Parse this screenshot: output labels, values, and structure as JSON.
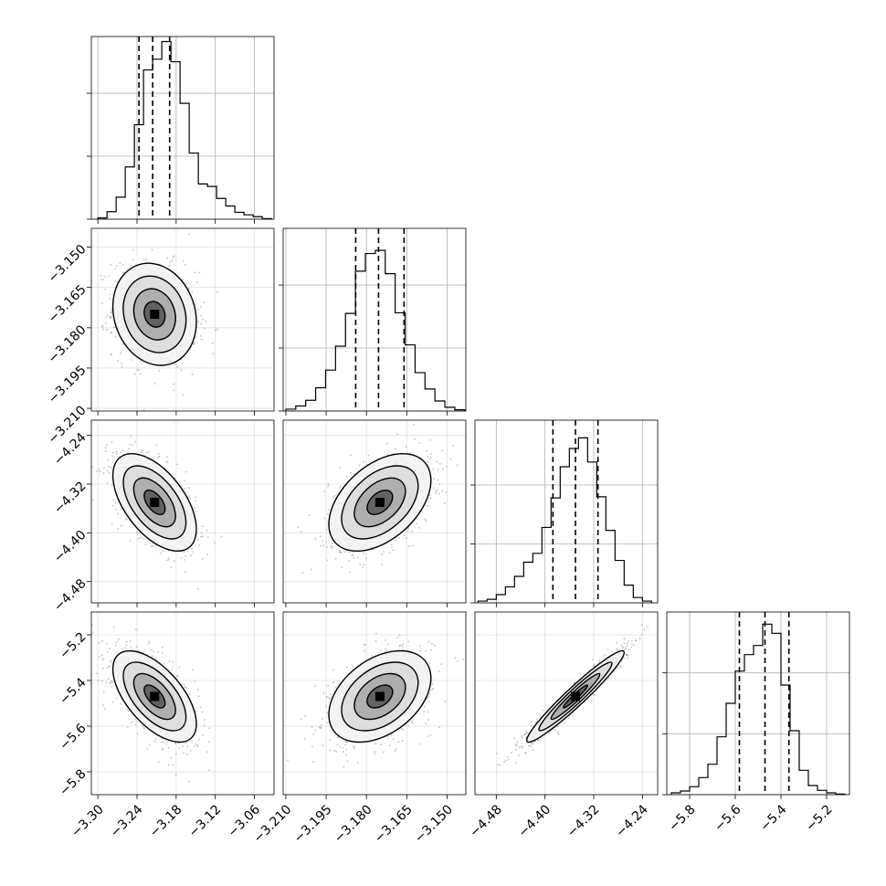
{
  "chart_data": {
    "type": "corner",
    "parameters": [
      {
        "name": "",
        "range": [
          -3.31,
          -3.03
        ],
        "ticks": [
          -3.3,
          -3.24,
          -3.18,
          -3.12,
          -3.06
        ],
        "tick_labels": [
          "−3.30",
          "−3.24",
          "−3.18",
          "−3.12",
          "−3.06"
        ],
        "hist_ylim": [
          0,
          2900
        ],
        "hist_gridlines": [
          0,
          1000,
          2000
        ],
        "hist_bin_edges": [
          -3.3,
          -3.286,
          -3.272,
          -3.258,
          -3.244,
          -3.23,
          -3.216,
          -3.202,
          -3.188,
          -3.174,
          -3.16,
          -3.146,
          -3.132,
          -3.118,
          -3.104,
          -3.09,
          -3.076,
          -3.062,
          -3.048,
          -3.034
        ],
        "hist_counts": [
          20,
          120,
          350,
          830,
          1500,
          2370,
          2540,
          2820,
          2500,
          1840,
          1050,
          560,
          520,
          330,
          210,
          110,
          70,
          40,
          10
        ],
        "quantiles": [
          -3.237,
          -3.216,
          -3.19
        ],
        "mean": -3.213,
        "sd": 0.032
      },
      {
        "name": "",
        "range": [
          -3.211,
          -3.143
        ],
        "ticks": [
          -3.21,
          -3.195,
          -3.18,
          -3.165,
          -3.15
        ],
        "tick_labels": [
          "−3.210",
          "−3.195",
          "−3.180",
          "−3.165",
          "−3.150"
        ],
        "hist_ylim": [
          0,
          2900
        ],
        "hist_gridlines": [
          0,
          1000,
          2000
        ],
        "hist_bin_edges": [
          -3.21,
          -3.2063,
          -3.2026,
          -3.1989,
          -3.1952,
          -3.1915,
          -3.1878,
          -3.1841,
          -3.1804,
          -3.1767,
          -3.173,
          -3.1693,
          -3.1656,
          -3.1619,
          -3.1582,
          -3.1545,
          -3.1508,
          -3.1471,
          -3.1434
        ],
        "hist_counts": [
          30,
          80,
          170,
          370,
          650,
          1030,
          1550,
          2220,
          2500,
          2550,
          2180,
          1560,
          1050,
          610,
          350,
          160,
          60,
          20
        ],
        "quantiles": [
          -3.184,
          -3.1755,
          -3.166
        ],
        "mean": -3.175,
        "sd": 0.0095
      },
      {
        "name": "",
        "range": [
          -4.515,
          -4.215
        ],
        "ticks": [
          -4.48,
          -4.4,
          -4.32,
          -4.24
        ],
        "tick_labels": [
          "−4.48",
          "−4.40",
          "−4.32",
          "−4.24"
        ],
        "hist_ylim": [
          0,
          3100
        ],
        "hist_gridlines": [
          0,
          1000,
          2000
        ],
        "hist_bin_edges": [
          -4.51,
          -4.495,
          -4.48,
          -4.465,
          -4.45,
          -4.435,
          -4.42,
          -4.405,
          -4.39,
          -4.375,
          -4.36,
          -4.345,
          -4.33,
          -4.315,
          -4.3,
          -4.285,
          -4.27,
          -4.255,
          -4.24,
          -4.225
        ],
        "hist_counts": [
          30,
          60,
          140,
          270,
          450,
          690,
          840,
          1280,
          1780,
          2310,
          2620,
          2800,
          2390,
          1800,
          1230,
          720,
          300,
          90,
          30
        ],
        "quantiles": [
          -4.387,
          -4.35,
          -4.313
        ],
        "mean": -4.35,
        "sd": 0.04
      },
      {
        "name": "",
        "range": [
          -5.9,
          -5.1
        ],
        "ticks": [
          -5.8,
          -5.6,
          -5.4,
          -5.2
        ],
        "tick_labels": [
          "−5.8",
          "−5.6",
          "−5.4",
          "−5.2"
        ],
        "hist_ylim": [
          0,
          3000
        ],
        "hist_gridlines": [
          0,
          1000,
          2000
        ],
        "hist_bin_edges": [
          -5.88,
          -5.84,
          -5.8,
          -5.76,
          -5.72,
          -5.68,
          -5.64,
          -5.6,
          -5.56,
          -5.52,
          -5.48,
          -5.44,
          -5.4,
          -5.36,
          -5.32,
          -5.28,
          -5.24,
          -5.2,
          -5.16,
          -5.12
        ],
        "hist_counts": [
          30,
          60,
          130,
          280,
          500,
          950,
          1500,
          2030,
          2300,
          2450,
          2800,
          2650,
          1800,
          1050,
          400,
          150,
          70,
          30,
          10
        ],
        "quantiles": [
          -5.582,
          -5.47,
          -5.365
        ],
        "mean": -5.47,
        "sd": 0.1
      }
    ],
    "correlations": {
      "1-0": -0.15,
      "2-0": -0.55,
      "2-1": 0.45,
      "3-0": -0.6,
      "3-1": 0.4,
      "3-2": 0.96
    },
    "contour_levels_sigma": [
      0.5,
      1.0,
      1.5,
      2.0
    ],
    "grid": true
  }
}
